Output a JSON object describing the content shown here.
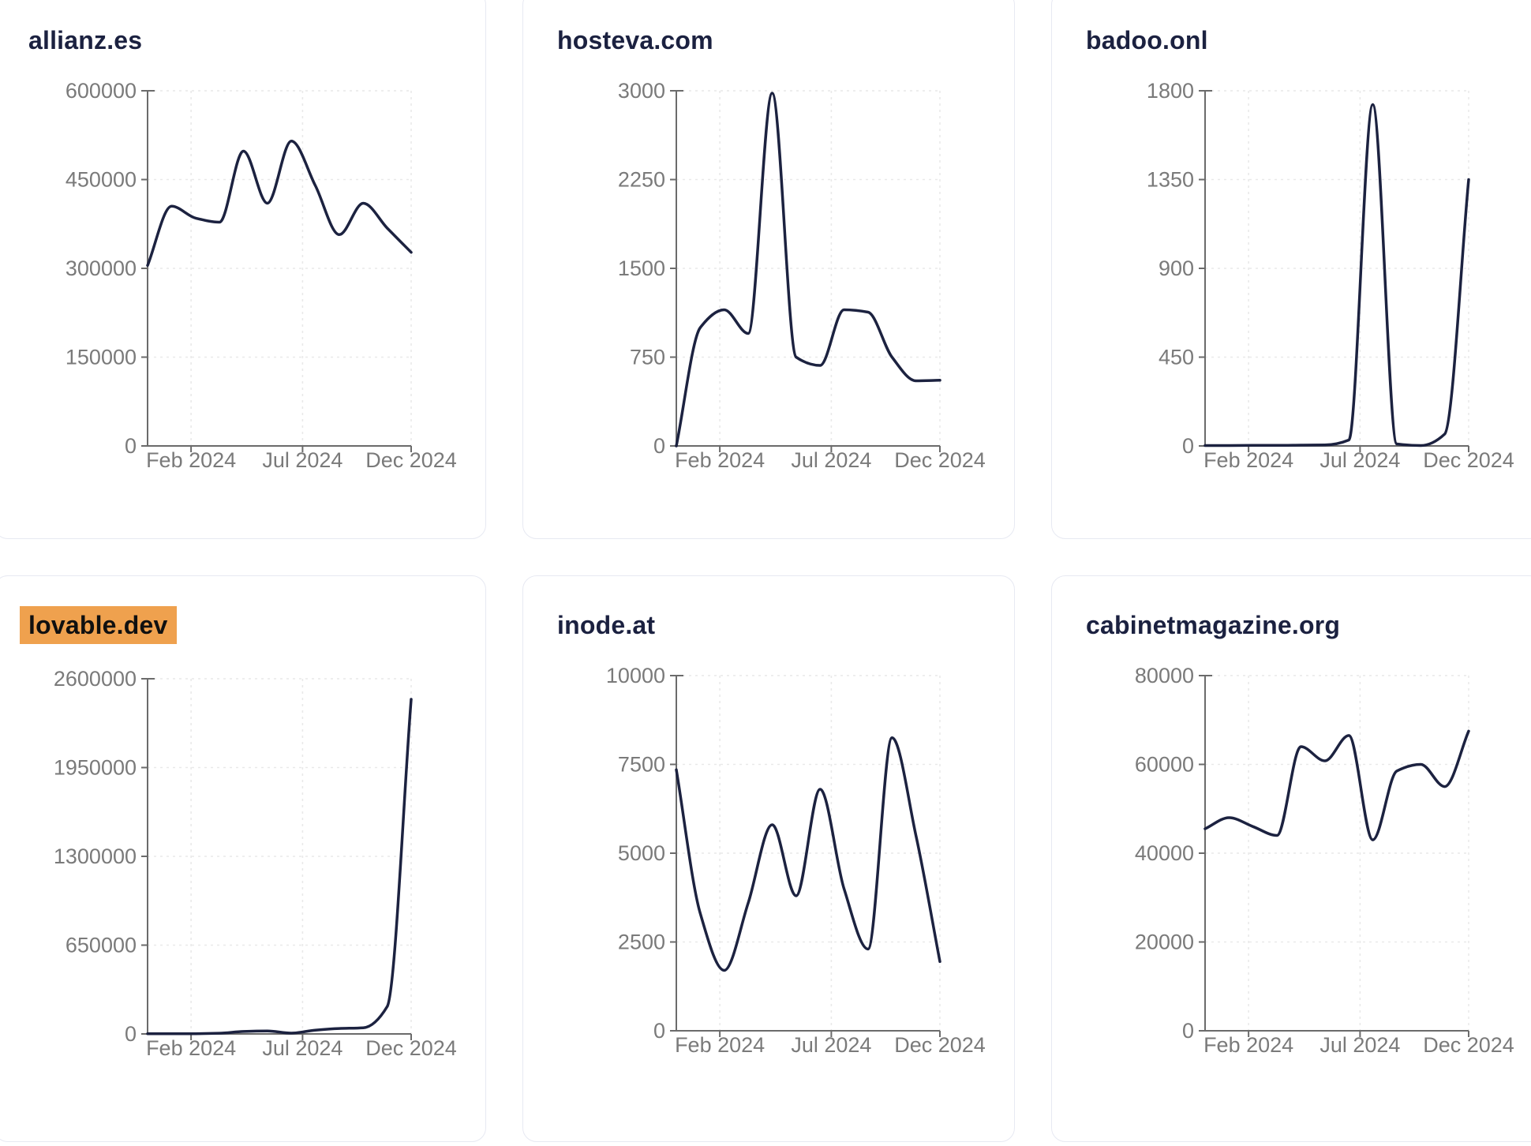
{
  "colors": {
    "line": "#1c2240",
    "title_text": "#1b2140",
    "tick_text": "#7a7a7a",
    "axis": "#6b6b6b",
    "grid": "#e9e9e9",
    "card_border": "#e7e9f2",
    "highlight_bg": "#efa14e",
    "page_background": "#ffffff"
  },
  "chart_data": [
    {
      "type": "line",
      "title": "allianz.es",
      "title_highlighted": false,
      "x": [
        "Jan 2024",
        "Feb 2024",
        "Mar 2024",
        "Apr 2024",
        "May 2024",
        "Jun 2024",
        "Jul 2024",
        "Aug 2024",
        "Sep 2024",
        "Oct 2024",
        "Nov 2024",
        "Dec 2024"
      ],
      "values": [
        305000,
        405000,
        385000,
        378000,
        498000,
        410000,
        515000,
        440000,
        357000,
        410000,
        368000,
        327000
      ],
      "ylim": [
        0,
        600000
      ],
      "yticks": [
        0,
        150000,
        300000,
        450000,
        600000
      ],
      "xticks": [
        "Feb 2024",
        "Jul 2024",
        "Dec 2024"
      ],
      "grid": true,
      "legend": "none"
    },
    {
      "type": "line",
      "title": "hosteva.com",
      "title_highlighted": false,
      "x": [
        "Jan 2024",
        "Feb 2024",
        "Mar 2024",
        "Apr 2024",
        "May 2024",
        "Jun 2024",
        "Jul 2024",
        "Aug 2024",
        "Sep 2024",
        "Oct 2024",
        "Nov 2024",
        "Dec 2024"
      ],
      "values": [
        0,
        1000,
        1150,
        950,
        2980,
        750,
        680,
        1150,
        1130,
        750,
        550,
        555
      ],
      "ylim": [
        0,
        3000
      ],
      "yticks": [
        0,
        750,
        1500,
        2250,
        3000
      ],
      "xticks": [
        "Feb 2024",
        "Jul 2024",
        "Dec 2024"
      ],
      "grid": true,
      "legend": "none"
    },
    {
      "type": "line",
      "title": "badoo.onl",
      "title_highlighted": false,
      "x": [
        "Jan 2024",
        "Feb 2024",
        "Mar 2024",
        "Apr 2024",
        "May 2024",
        "Jun 2024",
        "Jul 2024",
        "Aug 2024",
        "Sep 2024",
        "Oct 2024",
        "Nov 2024",
        "Dec 2024"
      ],
      "values": [
        2,
        2,
        3,
        3,
        4,
        5,
        30,
        1730,
        10,
        2,
        60,
        1350
      ],
      "ylim": [
        0,
        1800
      ],
      "yticks": [
        0,
        450,
        900,
        1350,
        1800
      ],
      "xticks": [
        "Feb 2024",
        "Jul 2024",
        "Dec 2024"
      ],
      "grid": true,
      "legend": "none"
    },
    {
      "type": "line",
      "title": "lovable.dev",
      "title_highlighted": true,
      "x": [
        "Jan 2024",
        "Feb 2024",
        "Mar 2024",
        "Apr 2024",
        "May 2024",
        "Jun 2024",
        "Jul 2024",
        "Aug 2024",
        "Sep 2024",
        "Oct 2024",
        "Nov 2024",
        "Dec 2024"
      ],
      "values": [
        1000,
        1500,
        2000,
        5000,
        18000,
        22000,
        6000,
        28000,
        40000,
        45000,
        200000,
        2450000
      ],
      "ylim": [
        0,
        2600000
      ],
      "yticks": [
        0,
        650000,
        1300000,
        1950000,
        2600000
      ],
      "xticks": [
        "Feb 2024",
        "Jul 2024",
        "Dec 2024"
      ],
      "grid": true,
      "legend": "none"
    },
    {
      "type": "line",
      "title": "inode.at",
      "title_highlighted": false,
      "x": [
        "Jan 2024",
        "Feb 2024",
        "Mar 2024",
        "Apr 2024",
        "May 2024",
        "Jun 2024",
        "Jul 2024",
        "Aug 2024",
        "Sep 2024",
        "Oct 2024",
        "Nov 2024",
        "Dec 2024"
      ],
      "values": [
        7350,
        3300,
        1700,
        3600,
        5800,
        3800,
        6800,
        4000,
        2300,
        8250,
        5500,
        1950
      ],
      "ylim": [
        0,
        10000
      ],
      "yticks": [
        0,
        2500,
        5000,
        7500,
        10000
      ],
      "xticks": [
        "Feb 2024",
        "Jul 2024",
        "Dec 2024"
      ],
      "grid": true,
      "legend": "none"
    },
    {
      "type": "line",
      "title": "cabinetmagazine.org",
      "title_highlighted": false,
      "x": [
        "Jan 2024",
        "Feb 2024",
        "Mar 2024",
        "Apr 2024",
        "May 2024",
        "Jun 2024",
        "Jul 2024",
        "Aug 2024",
        "Sep 2024",
        "Oct 2024",
        "Nov 2024",
        "Dec 2024"
      ],
      "values": [
        45500,
        48000,
        46000,
        44000,
        64000,
        60800,
        66500,
        43000,
        58500,
        60000,
        55000,
        67500
      ],
      "ylim": [
        0,
        80000
      ],
      "yticks": [
        0,
        20000,
        40000,
        60000,
        80000
      ],
      "xticks": [
        "Feb 2024",
        "Jul 2024",
        "Dec 2024"
      ],
      "grid": true,
      "legend": "none"
    }
  ]
}
